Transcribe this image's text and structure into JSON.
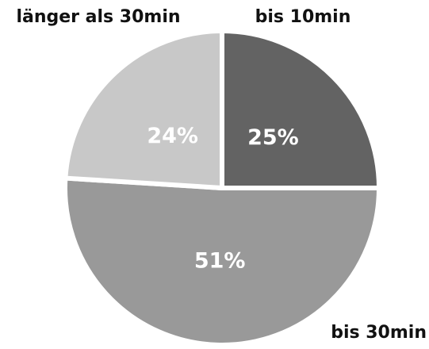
{
  "chart_data": {
    "type": "pie",
    "categories": [
      "bis 10min",
      "bis 30min",
      "länger als 30min"
    ],
    "values": [
      25,
      51,
      24
    ],
    "value_labels": [
      "25%",
      "51%",
      "24%"
    ],
    "colors": [
      "#636363",
      "#999999",
      "#c8c8c8"
    ]
  }
}
